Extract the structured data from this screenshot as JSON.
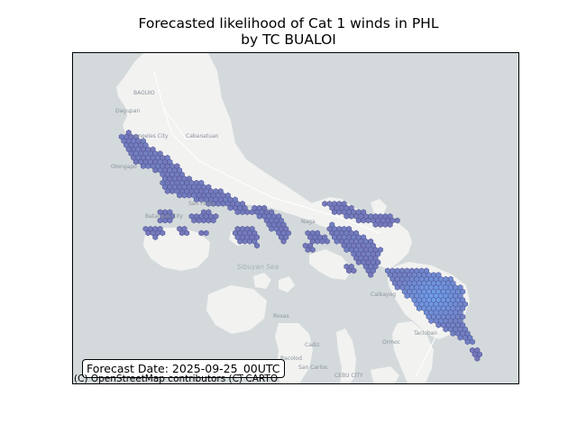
{
  "title": {
    "line1": "Forecasted likelihood of Cat 1 winds in PHL",
    "line2": "by TC BUALOI"
  },
  "map": {
    "basemap": "CARTO light",
    "colors": {
      "sea": "#d4dadc",
      "land": "#f2f2f1",
      "roads": "#ffffff",
      "likelihood_low": "#6a6fb4",
      "likelihood_high": "#5fa8ff",
      "hex_edge": "#4b4f8f"
    },
    "place_labels": [
      "BAGUIO",
      "Dagupan",
      "Cabanatuan",
      "Angeles City",
      "Olongapo",
      "San Pablo",
      "Batangas City",
      "Naga",
      "Sibuyan Sea",
      "Calbayog",
      "Tacloban",
      "Ormoc",
      "Roxas",
      "Cadiz",
      "Bacolod",
      "San Carlos",
      "CEBU CITY"
    ],
    "forecast_label": "Forecast Date: 2025-09-25_00UTC",
    "attribution": "(C) OpenStreetMap contributors (C) CARTO"
  }
}
